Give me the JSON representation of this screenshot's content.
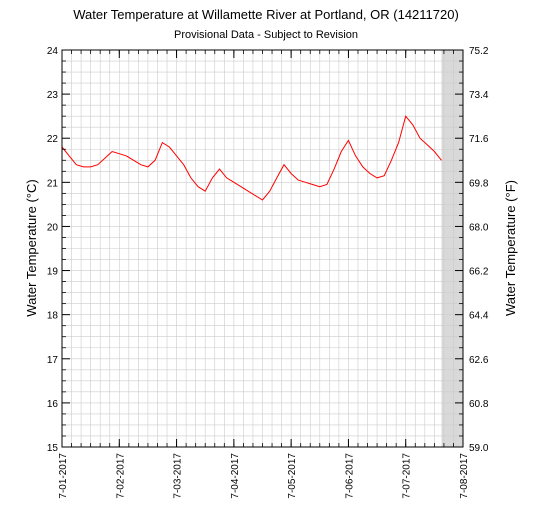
{
  "chart_data": {
    "type": "line",
    "title": "Water Temperature at Willamette River at Portland, OR (14211720)",
    "subtitle": "Provisional Data - Subject to Revision",
    "ylabel_left": "Water Temperature (°C)",
    "ylabel_right": "Water Temperature (°F)",
    "ylim": [
      15,
      24
    ],
    "yticks_left": [
      "15",
      "16",
      "17",
      "18",
      "19",
      "20",
      "21",
      "22",
      "23",
      "24"
    ],
    "ylim_right": [
      59.0,
      75.2
    ],
    "yticks_right": [
      "59.0",
      "60.8",
      "62.6",
      "64.4",
      "66.2",
      "68.0",
      "69.8",
      "71.6",
      "73.4",
      "75.2"
    ],
    "xlim": [
      "2017-07-01",
      "2017-07-08"
    ],
    "xtick_labels": [
      "7-01-2017",
      "7-02-2017",
      "7-03-2017",
      "7-04-2017",
      "7-05-2017",
      "7-06-2017",
      "7-07-2017",
      "7-08-2017"
    ],
    "grid": true,
    "shaded_region": [
      "2017-07-07 15:00",
      "2017-07-08"
    ],
    "line_color": "#ff0000",
    "shade_color": "#d9d9d9",
    "grid_color": "#cccccc",
    "series": [
      {
        "x": [
          "2017-07-01 00:00",
          "2017-07-01 03:00",
          "2017-07-01 06:00",
          "2017-07-01 09:00",
          "2017-07-01 12:00",
          "2017-07-01 15:00",
          "2017-07-01 18:00",
          "2017-07-01 21:00",
          "2017-07-02 00:00",
          "2017-07-02 03:00",
          "2017-07-02 06:00",
          "2017-07-02 09:00",
          "2017-07-02 12:00",
          "2017-07-02 15:00",
          "2017-07-02 18:00",
          "2017-07-02 21:00",
          "2017-07-03 00:00",
          "2017-07-03 03:00",
          "2017-07-03 06:00",
          "2017-07-03 09:00",
          "2017-07-03 12:00",
          "2017-07-03 15:00",
          "2017-07-03 18:00",
          "2017-07-03 21:00",
          "2017-07-04 00:00",
          "2017-07-04 03:00",
          "2017-07-04 06:00",
          "2017-07-04 09:00",
          "2017-07-04 12:00",
          "2017-07-04 15:00",
          "2017-07-04 18:00",
          "2017-07-04 21:00",
          "2017-07-05 00:00",
          "2017-07-05 03:00",
          "2017-07-05 06:00",
          "2017-07-05 09:00",
          "2017-07-05 12:00",
          "2017-07-05 15:00",
          "2017-07-05 18:00",
          "2017-07-05 21:00",
          "2017-07-06 00:00",
          "2017-07-06 03:00",
          "2017-07-06 06:00",
          "2017-07-06 09:00",
          "2017-07-06 12:00",
          "2017-07-06 15:00",
          "2017-07-06 18:00",
          "2017-07-06 21:00",
          "2017-07-07 00:00",
          "2017-07-07 03:00",
          "2017-07-07 06:00",
          "2017-07-07 09:00",
          "2017-07-07 12:00",
          "2017-07-07 15:00"
        ],
        "y": [
          21.8,
          21.6,
          21.4,
          21.35,
          21.35,
          21.4,
          21.55,
          21.7,
          21.65,
          21.6,
          21.5,
          21.4,
          21.35,
          21.5,
          21.9,
          21.8,
          21.6,
          21.4,
          21.1,
          20.9,
          20.8,
          21.1,
          21.3,
          21.1,
          21.0,
          20.9,
          20.8,
          20.7,
          20.6,
          20.8,
          21.1,
          21.4,
          21.2,
          21.05,
          21.0,
          20.95,
          20.9,
          20.95,
          21.3,
          21.7,
          21.95,
          21.6,
          21.35,
          21.2,
          21.1,
          21.15,
          21.5,
          21.9,
          22.5,
          22.3,
          22.0,
          21.85,
          21.7,
          21.5
        ]
      }
    ]
  }
}
